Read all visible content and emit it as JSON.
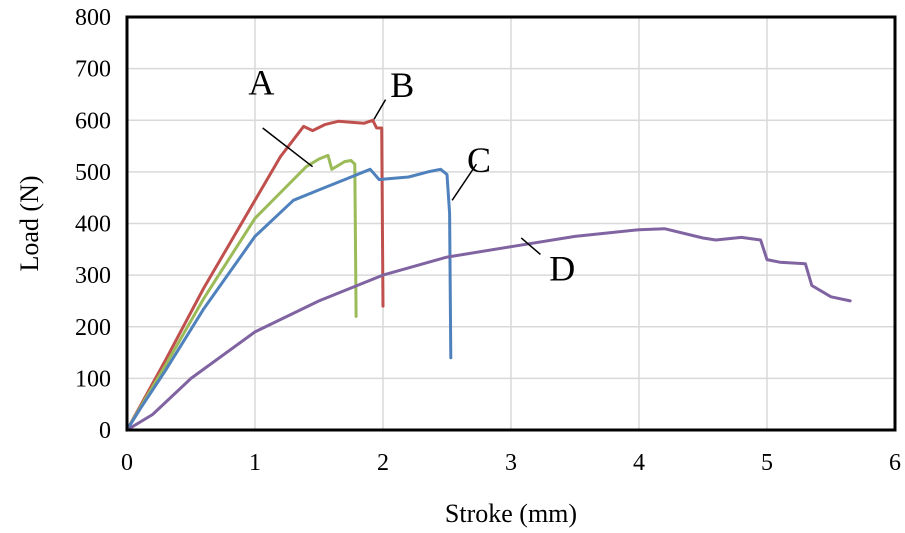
{
  "chart_data": {
    "type": "line",
    "xlabel": "Stroke (mm)",
    "ylabel": "Load (N)",
    "xlim": [
      0,
      6
    ],
    "ylim": [
      0,
      800
    ],
    "xticks": [
      0,
      1,
      2,
      3,
      4,
      5,
      6
    ],
    "yticks": [
      0,
      100,
      200,
      300,
      400,
      500,
      600,
      700,
      800
    ],
    "grid": true,
    "legend": "none",
    "series": [
      {
        "name": "A",
        "color": "#c0504d",
        "x": [
          0,
          0.1,
          0.3,
          0.6,
          1.0,
          1.2,
          1.38,
          1.45,
          1.55,
          1.65,
          1.75,
          1.85,
          1.92,
          1.95,
          1.99,
          2.0
        ],
        "y": [
          0,
          45,
          135,
          275,
          445,
          530,
          588,
          580,
          592,
          598,
          596,
          594,
          600,
          585,
          585,
          240
        ]
      },
      {
        "name": "",
        "color": "#9bbb59",
        "x": [
          0,
          0.1,
          0.3,
          0.6,
          1.0,
          1.2,
          1.4,
          1.5,
          1.57,
          1.6,
          1.7,
          1.75,
          1.78,
          1.79
        ],
        "y": [
          0,
          42,
          125,
          255,
          410,
          460,
          510,
          525,
          532,
          505,
          520,
          522,
          515,
          220
        ]
      },
      {
        "name": "C",
        "color": "#4f81bd",
        "x": [
          0,
          0.1,
          0.3,
          0.6,
          1.0,
          1.3,
          1.5,
          1.7,
          1.9,
          1.97,
          2.05,
          2.2,
          2.35,
          2.45,
          2.5,
          2.52,
          2.53
        ],
        "y": [
          0,
          40,
          115,
          235,
          375,
          445,
          465,
          485,
          505,
          485,
          487,
          490,
          500,
          505,
          495,
          420,
          140
        ]
      },
      {
        "name": "D",
        "color": "#8064a2",
        "x": [
          0,
          0.2,
          0.5,
          1.0,
          1.5,
          2.0,
          2.5,
          3.0,
          3.5,
          4.0,
          4.2,
          4.5,
          4.6,
          4.8,
          4.95,
          5.0,
          5.1,
          5.3,
          5.35,
          5.5,
          5.65
        ],
        "y": [
          0,
          30,
          100,
          190,
          250,
          300,
          335,
          355,
          375,
          388,
          390,
          372,
          368,
          373,
          368,
          330,
          325,
          322,
          280,
          258,
          250
        ]
      }
    ],
    "annotations": [
      {
        "text": "A",
        "x": 1.05,
        "y": 650,
        "lx1": 1.06,
        "ly1": 585,
        "lx2": 1.45,
        "ly2": 510
      },
      {
        "text": "B",
        "x": 2.15,
        "y": 645,
        "lx1": 2.02,
        "ly1": 640,
        "lx2": 1.93,
        "ly2": 602
      },
      {
        "text": "C",
        "x": 2.75,
        "y": 500,
        "lx1": 2.73,
        "ly1": 515,
        "lx2": 2.54,
        "ly2": 445
      },
      {
        "text": "D",
        "x": 3.4,
        "y": 290,
        "lx1": 3.23,
        "ly1": 340,
        "lx2": 3.08,
        "ly2": 372
      }
    ]
  }
}
